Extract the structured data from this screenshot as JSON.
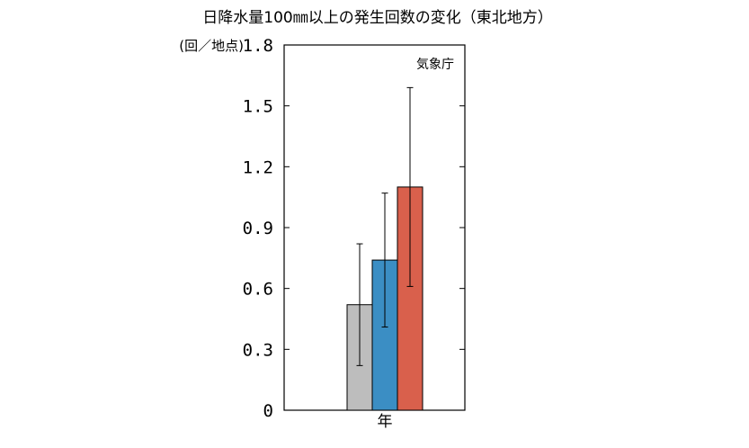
{
  "chart_data": {
    "type": "bar",
    "title": "日降水量100㎜以上の発生回数の変化（東北地方）",
    "ylabel": "(回／地点)",
    "source": "気象庁",
    "categories": [
      "年"
    ],
    "ylim": [
      0,
      1.8
    ],
    "yticks": [
      0,
      0.3,
      0.6,
      0.9,
      1.2,
      1.5,
      1.8
    ],
    "ytick_labels": [
      "0",
      "0.3",
      "0.6",
      "0.9",
      "1.2",
      "1.5",
      "1.8"
    ],
    "grid": false,
    "series": [
      {
        "values": [
          0.52
        ],
        "error_low": [
          0.22
        ],
        "error_high": [
          0.82
        ],
        "color": "#bdbdbd"
      },
      {
        "values": [
          0.74
        ],
        "error_low": [
          0.41
        ],
        "error_high": [
          1.07
        ],
        "color": "#3b8ec4"
      },
      {
        "values": [
          1.1
        ],
        "error_low": [
          0.61
        ],
        "error_high": [
          1.59
        ],
        "color": "#d9604c"
      }
    ]
  }
}
